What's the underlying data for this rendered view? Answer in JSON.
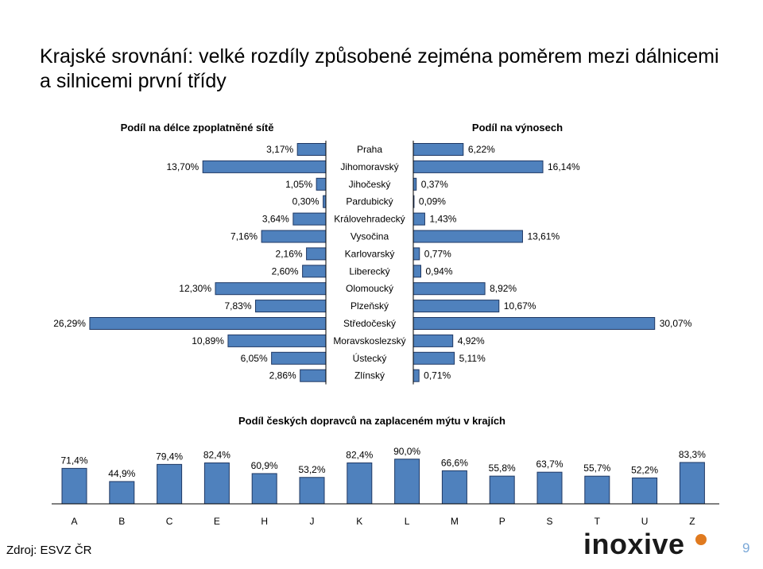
{
  "slide": {
    "title": "Krajské srovnání: velké rozdíly způsobené zejména poměrem mezi dálnicemi a silnicemi první třídy",
    "source": "Zdroj: ESVZ ČR",
    "logo": "inoxive",
    "page_number": "9"
  },
  "colors": {
    "bar_fill": "#4f81bd",
    "bar_border": "#1f3864",
    "axis": "#000000",
    "logo_accent": "#e07a1f"
  },
  "chart_data": [
    {
      "type": "bar",
      "orientation": "horizontal-butterfly",
      "left_title": "Podíl na délce zpoplatněné sítě",
      "right_title": "Podíl na výnosech",
      "categories": [
        "Praha",
        "Jihomoravský",
        "Jihočeský",
        "Pardubický",
        "Královehradecký",
        "Vysočina",
        "Karlovarský",
        "Liberecký",
        "Olomoucký",
        "Plzeňský",
        "Středočeský",
        "Moravskoslezský",
        "Ústecký",
        "Zlínský"
      ],
      "series": [
        {
          "values": [
            3.17,
            13.7,
            1.05,
            0.3,
            3.64,
            7.16,
            2.16,
            2.6,
            12.3,
            7.83,
            26.29,
            10.89,
            6.05,
            2.86
          ],
          "labels": [
            "3,17%",
            "13,70%",
            "1,05%",
            "0,30%",
            "3,64%",
            "7,16%",
            "2,16%",
            "2,60%",
            "12,30%",
            "7,83%",
            "26,29%",
            "10,89%",
            "6,05%",
            "2,86%"
          ]
        },
        {
          "values": [
            6.22,
            16.14,
            0.37,
            0.09,
            1.43,
            13.61,
            0.77,
            0.94,
            8.92,
            10.67,
            30.07,
            4.92,
            5.11,
            0.71
          ],
          "labels": [
            "6,22%",
            "16,14%",
            "0,37%",
            "0,09%",
            "1,43%",
            "13,61%",
            "0,77%",
            "0,94%",
            "8,92%",
            "10,67%",
            "30,07%",
            "4,92%",
            "5,11%",
            "0,71%"
          ]
        }
      ]
    },
    {
      "type": "bar",
      "title": "Podíl českých dopravců na zaplaceném mýtu v krajích",
      "categories": [
        "A",
        "B",
        "C",
        "E",
        "H",
        "J",
        "K",
        "L",
        "M",
        "P",
        "S",
        "T",
        "U",
        "Z"
      ],
      "values": [
        71.4,
        44.9,
        79.4,
        82.4,
        60.9,
        53.2,
        82.4,
        90.0,
        66.6,
        55.8,
        63.7,
        55.7,
        52.2,
        83.3
      ],
      "labels": [
        "71,4%",
        "44,9%",
        "79,4%",
        "82,4%",
        "60,9%",
        "53,2%",
        "82,4%",
        "90,0%",
        "66,6%",
        "55,8%",
        "63,7%",
        "55,7%",
        "52,2%",
        "83,3%"
      ]
    }
  ]
}
